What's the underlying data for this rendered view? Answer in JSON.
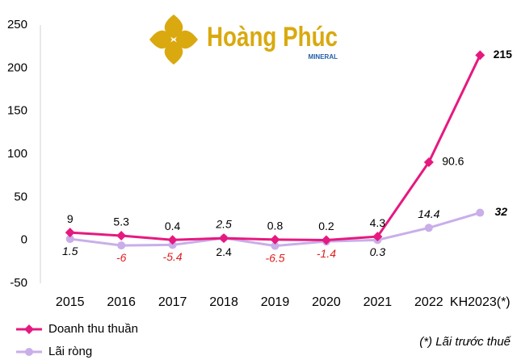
{
  "logo": {
    "name": "Hoàng Phúc",
    "sub": "MINERAL"
  },
  "chart_data": {
    "type": "line",
    "categories": [
      "2015",
      "2016",
      "2017",
      "2018",
      "2019",
      "2020",
      "2021",
      "2022",
      "KH2023(*)"
    ],
    "series": [
      {
        "name": "Doanh thu thuần",
        "color": "#e6197f",
        "marker": "diamond",
        "values": [
          9,
          5.3,
          0.4,
          2.4,
          0.8,
          0.2,
          4.3,
          90.6,
          215
        ]
      },
      {
        "name": "Lãi ròng",
        "color": "#c9aee9",
        "marker": "circle",
        "values": [
          1.5,
          -6,
          -5.4,
          2.5,
          -6.5,
          -1.4,
          0.3,
          14.4,
          32
        ]
      }
    ],
    "ylim": [
      -50,
      250
    ],
    "yticks": [
      -50,
      0,
      50,
      100,
      150,
      200,
      250
    ],
    "footnote": "(*) Lãi trước thuế"
  }
}
